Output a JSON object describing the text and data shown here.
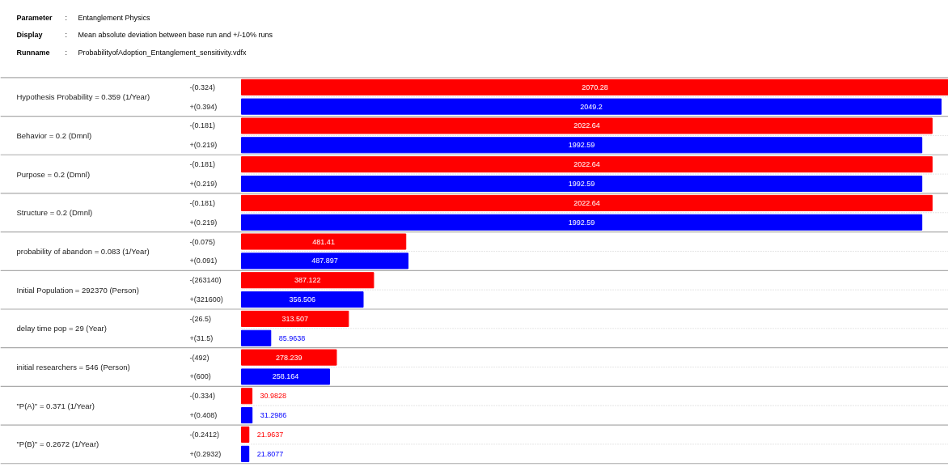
{
  "chart_data": {
    "type": "bar",
    "orientation": "horizontal",
    "data_labels": true,
    "grid": "y",
    "categories": [
      "Hypothesis Probability = 0.359 (1/Year)",
      "Behavior = 0.2 (Dmnl)",
      "Purpose = 0.2 (Dmnl)",
      "Structure = 0.2 (Dmnl)",
      "probability of abandon = 0.083 (1/Year)",
      "Initial Population = 292370 (Person)",
      "delay time pop = 29 (Year)",
      "initial researchers = 546 (Person)",
      "\"P(A)\" = 0.371 (1/Year)",
      "\"P(B)\" = 0.2672 (1/Year)"
    ],
    "series": [
      {
        "color": "#ff0000",
        "values": [
          2070.28,
          2022.64,
          2022.64,
          2022.64,
          481.41,
          387.122,
          313.507,
          278.239,
          30.9828,
          21.9637
        ]
      },
      {
        "color": "#0000ff",
        "values": [
          2049.2,
          1992.59,
          1992.59,
          1992.59,
          487.897,
          356.506,
          85.9638,
          258.164,
          31.2986,
          21.8077
        ]
      }
    ],
    "annotations": [
      "Parameter : Entanglement Physics",
      "Display : Mean absolute deviation between base run and +/-10% runs",
      "Runname : ProbabilityofAdoption_Entanglement_sensitivity.vdfx",
      "-(0.324)",
      "+(0.394)",
      "-(0.181)",
      "+(0.219)",
      "-(0.181)",
      "+(0.219)",
      "-(0.181)",
      "+(0.219)",
      "-(0.075)",
      "+(0.091)",
      "-(263140)",
      "+(321600)",
      "-(26.5)",
      "+(31.5)",
      "-(492)",
      "+(600)",
      "-(0.334)",
      "+(0.408)",
      "-(0.2412)",
      "+(0.2932)"
    ]
  }
}
